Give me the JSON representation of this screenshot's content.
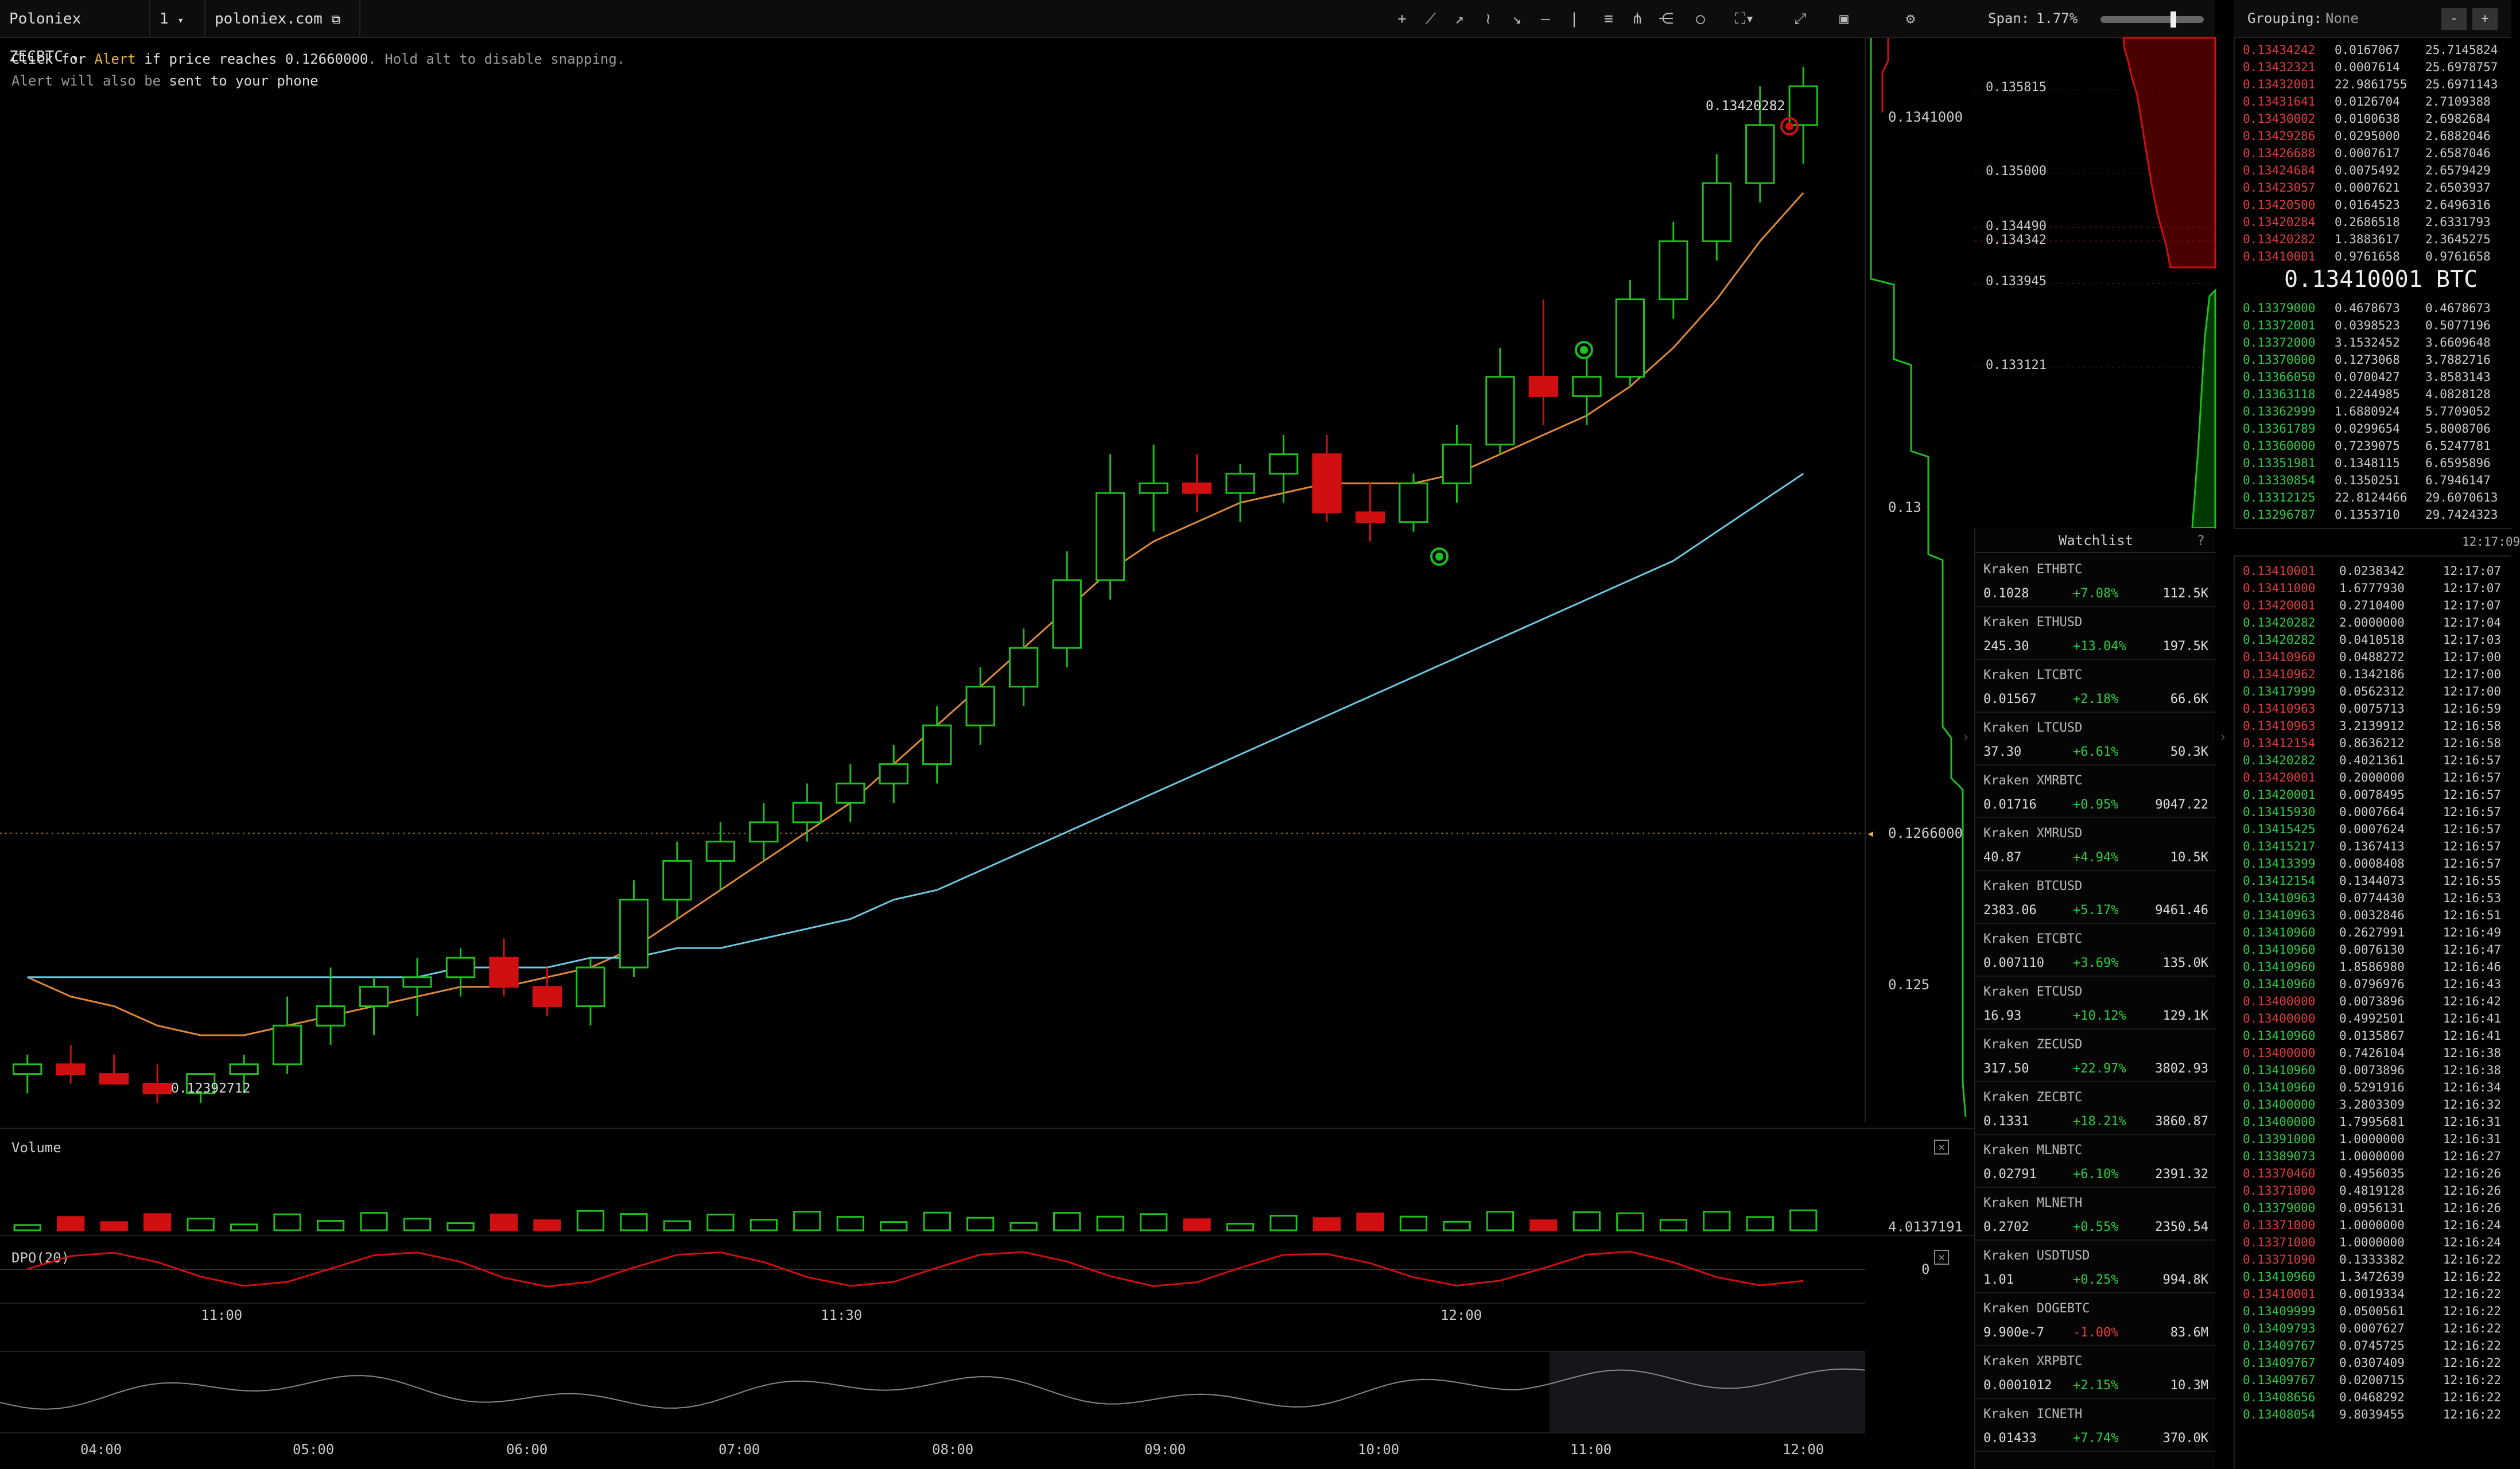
{
  "toolbar": {
    "pair_label": "Poloniex ZECBTC",
    "interval_label": "1",
    "source_label": "poloniex.com",
    "icons": [
      "crosshair-icon",
      "trendline-icon",
      "ray-icon",
      "zigzag-icon",
      "arrow-icon",
      "horizontal-line-icon",
      "vertical-line-icon",
      "channel-icon",
      "pitchfork-icon",
      "fib-icon",
      "circle-icon",
      "indicator-icon",
      "fullscreen-icon",
      "screenshot-icon",
      "settings-icon"
    ]
  },
  "alert": {
    "prefix": "Click for ",
    "keyword": "Alert",
    "middle": " if price reaches ",
    "price": "0.12660000",
    "suffix": ". Hold alt to disable snapping.",
    "line2_prefix": "Alert will also be ",
    "line2_link": "sent to your phone"
  },
  "chart": {
    "high_label": "0.13420282",
    "low_label": "0.12392712",
    "price_axis": [
      "0.1341000",
      "0.13",
      "0.1266000",
      "0.125"
    ],
    "time_axis": [
      "11:00",
      "11:30",
      "12:00"
    ],
    "overview_axis": [
      "04:00",
      "05:00",
      "06:00",
      "07:00",
      "08:00",
      "09:00",
      "10:00",
      "11:00",
      "12:00"
    ],
    "volume_title": "Volume",
    "volume_value": "4.0137191",
    "dpo_title": "DPO(20)",
    "dpo_zero": "0",
    "colors": {
      "up": "#1fbf1f",
      "down": "#d01010",
      "ma_fast": "#e08a3c",
      "ma_slow": "#6fc8e0",
      "alert": "#e8b23c"
    }
  },
  "chart_data": {
    "type": "candlestick",
    "title": "",
    "xlabel": "",
    "ylabel": "",
    "ylim": [
      0.1233,
      0.1345
    ],
    "series": [
      {
        "name": "",
        "values": [
          [
            0.1238,
            0.124,
            0.1236,
            0.1239
          ],
          [
            0.1239,
            0.1241,
            0.1237,
            0.1238
          ],
          [
            0.1238,
            0.124,
            0.1237,
            0.1237
          ],
          [
            0.1237,
            0.1239,
            0.1235,
            0.1236
          ],
          [
            0.1236,
            0.1238,
            0.1235,
            0.1238
          ],
          [
            0.1238,
            0.124,
            0.1236,
            0.1239
          ],
          [
            0.1239,
            0.1246,
            0.1238,
            0.1243
          ],
          [
            0.1243,
            0.1249,
            0.1241,
            0.1245
          ],
          [
            0.1245,
            0.1248,
            0.1242,
            0.1247
          ],
          [
            0.1247,
            0.125,
            0.1244,
            0.1248
          ],
          [
            0.1248,
            0.1251,
            0.1246,
            0.125
          ],
          [
            0.125,
            0.1252,
            0.1246,
            0.1247
          ],
          [
            0.1247,
            0.1249,
            0.1244,
            0.1245
          ],
          [
            0.1245,
            0.125,
            0.1243,
            0.1249
          ],
          [
            0.1249,
            0.1258,
            0.1248,
            0.1256
          ],
          [
            0.1256,
            0.1262,
            0.1254,
            0.126
          ],
          [
            0.126,
            0.1264,
            0.1257,
            0.1262
          ],
          [
            0.1262,
            0.1266,
            0.126,
            0.1264
          ],
          [
            0.1264,
            0.1268,
            0.1262,
            0.1266
          ],
          [
            0.1266,
            0.127,
            0.1264,
            0.1268
          ],
          [
            0.1268,
            0.1272,
            0.1266,
            0.127
          ],
          [
            0.127,
            0.1276,
            0.1268,
            0.1274
          ],
          [
            0.1274,
            0.128,
            0.1272,
            0.1278
          ],
          [
            0.1278,
            0.1284,
            0.1276,
            0.1282
          ],
          [
            0.1282,
            0.1292,
            0.128,
            0.1289
          ],
          [
            0.1289,
            0.1302,
            0.1287,
            0.1298
          ],
          [
            0.1298,
            0.1303,
            0.1294,
            0.1299
          ],
          [
            0.1299,
            0.1302,
            0.1296,
            0.1298
          ],
          [
            0.1298,
            0.1301,
            0.1295,
            0.13
          ],
          [
            0.13,
            0.1304,
            0.1297,
            0.1302
          ],
          [
            0.1302,
            0.1304,
            0.1295,
            0.1296
          ],
          [
            0.1296,
            0.1299,
            0.1293,
            0.1295
          ],
          [
            0.1295,
            0.13,
            0.1294,
            0.1299
          ],
          [
            0.1299,
            0.1305,
            0.1297,
            0.1303
          ],
          [
            0.1303,
            0.1313,
            0.1302,
            0.131
          ],
          [
            0.131,
            0.1318,
            0.1305,
            0.1308
          ],
          [
            0.1308,
            0.1312,
            0.1305,
            0.131
          ],
          [
            0.131,
            0.132,
            0.1309,
            0.1318
          ],
          [
            0.1318,
            0.1326,
            0.1316,
            0.1324
          ],
          [
            0.1324,
            0.1333,
            0.1322,
            0.133
          ],
          [
            0.133,
            0.134,
            0.1328,
            0.1336
          ],
          [
            0.1336,
            0.1342,
            0.1332,
            0.134
          ]
        ]
      }
    ],
    "moving_averages": [
      {
        "name": "",
        "values": [
          0.1248,
          0.1246,
          0.1245,
          0.1243,
          0.1242,
          0.1242,
          0.1243,
          0.1244,
          0.1245,
          0.1246,
          0.1247,
          0.1247,
          0.1248,
          0.1249,
          0.1251,
          0.1254,
          0.1257,
          0.126,
          0.1263,
          0.1266,
          0.127,
          0.1274,
          0.1278,
          0.1282,
          0.1286,
          0.129,
          0.1293,
          0.1295,
          0.1297,
          0.1298,
          0.1299,
          0.1299,
          0.1299,
          0.13,
          0.1302,
          0.1304,
          0.1306,
          0.1309,
          0.1313,
          0.1318,
          0.1324,
          0.1329
        ]
      },
      {
        "name": "",
        "values": [
          0.1248,
          0.1248,
          0.1248,
          0.1248,
          0.1248,
          0.1248,
          0.1248,
          0.1248,
          0.1248,
          0.1248,
          0.1249,
          0.1249,
          0.1249,
          0.125,
          0.125,
          0.1251,
          0.1251,
          0.1252,
          0.1253,
          0.1254,
          0.1256,
          0.1257,
          0.1259,
          0.1261,
          0.1263,
          0.1265,
          0.1267,
          0.1269,
          0.1271,
          0.1273,
          0.1275,
          0.1277,
          0.1279,
          0.1281,
          0.1283,
          0.1285,
          0.1287,
          0.1289,
          0.1291,
          0.1294,
          0.1297,
          0.13
        ]
      }
    ]
  },
  "depth": {
    "span_label": "Span:",
    "span_value": "1.77%",
    "axis": [
      "0.135815",
      "0.135000",
      "0.134490",
      "0.134342",
      "0.133945",
      "0.133121"
    ]
  },
  "watchlist": {
    "title": "Watchlist",
    "help": "?",
    "items": [
      {
        "name": "Kraken ETHBTC",
        "price": "0.1028",
        "change": "+7.08%",
        "volume": "112.5K",
        "up": true
      },
      {
        "name": "Kraken ETHUSD",
        "price": "245.30",
        "change": "+13.04%",
        "volume": "197.5K",
        "up": true
      },
      {
        "name": "Kraken LTCBTC",
        "price": "0.01567",
        "change": "+2.18%",
        "volume": "66.6K",
        "up": true
      },
      {
        "name": "Kraken LTCUSD",
        "price": "37.30",
        "change": "+6.61%",
        "volume": "50.3K",
        "up": true
      },
      {
        "name": "Kraken XMRBTC",
        "price": "0.01716",
        "change": "+0.95%",
        "volume": "9047.22",
        "up": true
      },
      {
        "name": "Kraken XMRUSD",
        "price": "40.87",
        "change": "+4.94%",
        "volume": "10.5K",
        "up": true
      },
      {
        "name": "Kraken BTCUSD",
        "price": "2383.06",
        "change": "+5.17%",
        "volume": "9461.46",
        "up": true
      },
      {
        "name": "Kraken ETCBTC",
        "price": "0.007110",
        "change": "+3.69%",
        "volume": "135.0K",
        "up": true
      },
      {
        "name": "Kraken ETCUSD",
        "price": "16.93",
        "change": "+10.12%",
        "volume": "129.1K",
        "up": true
      },
      {
        "name": "Kraken ZECUSD",
        "price": "317.50",
        "change": "+22.97%",
        "volume": "3802.93",
        "up": true
      },
      {
        "name": "Kraken ZECBTC",
        "price": "0.1331",
        "change": "+18.21%",
        "volume": "3860.87",
        "up": true
      },
      {
        "name": "Kraken MLNBTC",
        "price": "0.02791",
        "change": "+6.10%",
        "volume": "2391.32",
        "up": true
      },
      {
        "name": "Kraken MLNETH",
        "price": "0.2702",
        "change": "+0.55%",
        "volume": "2350.54",
        "up": true
      },
      {
        "name": "Kraken USDTUSD",
        "price": "1.01",
        "change": "+0.25%",
        "volume": "994.8K",
        "up": true
      },
      {
        "name": "Kraken DOGEBTC",
        "price": "9.900e-7",
        "change": "-1.00%",
        "volume": "83.6M",
        "up": false
      },
      {
        "name": "Kraken XRPBTC",
        "price": "0.0001012",
        "change": "+2.15%",
        "volume": "10.3M",
        "up": true
      },
      {
        "name": "Kraken ICNETH",
        "price": "0.01433",
        "change": "+7.74%",
        "volume": "370.0K",
        "up": true
      }
    ]
  },
  "orderbook": {
    "grouping_label": "Grouping:",
    "grouping_value": "None",
    "minus": "-",
    "plus": "+",
    "mid_price_prefix": "0.",
    "mid_price_rest": "13410001 BTC",
    "asks": [
      [
        "0.13434242",
        "0.0167067",
        "25.7145824"
      ],
      [
        "0.13432321",
        "0.0007614",
        "25.6978757"
      ],
      [
        "0.13432001",
        "22.9861755",
        "25.6971143"
      ],
      [
        "0.13431641",
        "0.0126704",
        "2.7109388"
      ],
      [
        "0.13430002",
        "0.0100638",
        "2.6982684"
      ],
      [
        "0.13429286",
        "0.0295000",
        "2.6882046"
      ],
      [
        "0.13426688",
        "0.0007617",
        "2.6587046"
      ],
      [
        "0.13424684",
        "0.0075492",
        "2.6579429"
      ],
      [
        "0.13423057",
        "0.0007621",
        "2.6503937"
      ],
      [
        "0.13420500",
        "0.0164523",
        "2.6496316"
      ],
      [
        "0.13420284",
        "0.2686518",
        "2.6331793"
      ],
      [
        "0.13420282",
        "1.3883617",
        "2.3645275"
      ],
      [
        "0.13410001",
        "0.9761658",
        "0.9761658"
      ]
    ],
    "bids": [
      [
        "0.13379000",
        "0.4678673",
        "0.4678673"
      ],
      [
        "0.13372001",
        "0.0398523",
        "0.5077196"
      ],
      [
        "0.13372000",
        "3.1532452",
        "3.6609648"
      ],
      [
        "0.13370000",
        "0.1273068",
        "3.7882716"
      ],
      [
        "0.13366050",
        "0.0700427",
        "3.8583143"
      ],
      [
        "0.13363118",
        "0.2244985",
        "4.0828128"
      ],
      [
        "0.13362999",
        "1.6880924",
        "5.7709052"
      ],
      [
        "0.13361789",
        "0.0299654",
        "5.8008706"
      ],
      [
        "0.13360000",
        "0.7239075",
        "6.5247781"
      ],
      [
        "0.13351981",
        "0.1348115",
        "6.6595896"
      ],
      [
        "0.13330854",
        "0.1350251",
        "6.7946147"
      ],
      [
        "0.13312125",
        "22.8124466",
        "29.6070613"
      ],
      [
        "0.13296787",
        "0.1353710",
        "29.7424323"
      ]
    ],
    "book_time": "12:17:09"
  },
  "trades": [
    [
      "0.13410001",
      "0.0238342",
      "12:17:07",
      false
    ],
    [
      "0.13411000",
      "1.6777930",
      "12:17:07",
      false
    ],
    [
      "0.13420001",
      "0.2710400",
      "12:17:07",
      false
    ],
    [
      "0.13420282",
      "2.0000000",
      "12:17:04",
      true
    ],
    [
      "0.13420282",
      "0.0410518",
      "12:17:03",
      true
    ],
    [
      "0.13410960",
      "0.0488272",
      "12:17:00",
      false
    ],
    [
      "0.13410962",
      "0.1342186",
      "12:17:00",
      false
    ],
    [
      "0.13417999",
      "0.0562312",
      "12:17:00",
      true
    ],
    [
      "0.13410963",
      "0.0075713",
      "12:16:59",
      false
    ],
    [
      "0.13410963",
      "3.2139912",
      "12:16:58",
      false
    ],
    [
      "0.13412154",
      "0.8636212",
      "12:16:58",
      false
    ],
    [
      "0.13420282",
      "0.4021361",
      "12:16:57",
      true
    ],
    [
      "0.13420001",
      "0.2000000",
      "12:16:57",
      false
    ],
    [
      "0.13420001",
      "0.0078495",
      "12:16:57",
      true
    ],
    [
      "0.13415930",
      "0.0007664",
      "12:16:57",
      true
    ],
    [
      "0.13415425",
      "0.0007624",
      "12:16:57",
      true
    ],
    [
      "0.13415217",
      "0.1367413",
      "12:16:57",
      true
    ],
    [
      "0.13413399",
      "0.0008408",
      "12:16:57",
      true
    ],
    [
      "0.13412154",
      "0.1344073",
      "12:16:55",
      true
    ],
    [
      "0.13410963",
      "0.0774430",
      "12:16:53",
      true
    ],
    [
      "0.13410963",
      "0.0032846",
      "12:16:51",
      true
    ],
    [
      "0.13410960",
      "0.2627991",
      "12:16:49",
      true
    ],
    [
      "0.13410960",
      "0.0076130",
      "12:16:47",
      true
    ],
    [
      "0.13410960",
      "1.8586980",
      "12:16:46",
      true
    ],
    [
      "0.13410960",
      "0.0796976",
      "12:16:43",
      true
    ],
    [
      "0.13400000",
      "0.0073896",
      "12:16:42",
      false
    ],
    [
      "0.13400000",
      "0.4992501",
      "12:16:41",
      false
    ],
    [
      "0.13410960",
      "0.0135867",
      "12:16:41",
      true
    ],
    [
      "0.13400000",
      "0.7426104",
      "12:16:38",
      false
    ],
    [
      "0.13410960",
      "0.0073896",
      "12:16:38",
      true
    ],
    [
      "0.13410960",
      "0.5291916",
      "12:16:34",
      true
    ],
    [
      "0.13400000",
      "3.2803309",
      "12:16:32",
      true
    ],
    [
      "0.13400000",
      "1.7995681",
      "12:16:31",
      true
    ],
    [
      "0.13391000",
      "1.0000000",
      "12:16:31",
      true
    ],
    [
      "0.13389073",
      "1.0000000",
      "12:16:27",
      true
    ],
    [
      "0.13370460",
      "0.4956035",
      "12:16:26",
      false
    ],
    [
      "0.13371000",
      "0.4819128",
      "12:16:26",
      false
    ],
    [
      "0.13379000",
      "0.0956131",
      "12:16:26",
      true
    ],
    [
      "0.13371000",
      "1.0000000",
      "12:16:24",
      false
    ],
    [
      "0.13371000",
      "1.0000000",
      "12:16:24",
      false
    ],
    [
      "0.13371090",
      "0.1333382",
      "12:16:22",
      false
    ],
    [
      "0.13410960",
      "1.3472639",
      "12:16:22",
      true
    ],
    [
      "0.13410001",
      "0.0019334",
      "12:16:22",
      false
    ],
    [
      "0.13409999",
      "0.0500561",
      "12:16:22",
      true
    ],
    [
      "0.13409793",
      "0.0007627",
      "12:16:22",
      true
    ],
    [
      "0.13409767",
      "0.0745725",
      "12:16:22",
      true
    ],
    [
      "0.13409767",
      "0.0307409",
      "12:16:22",
      true
    ],
    [
      "0.13409767",
      "0.0200715",
      "12:16:22",
      true
    ],
    [
      "0.13408656",
      "0.0468292",
      "12:16:22",
      true
    ],
    [
      "0.13408054",
      "9.8039455",
      "12:16:22",
      true
    ]
  ]
}
